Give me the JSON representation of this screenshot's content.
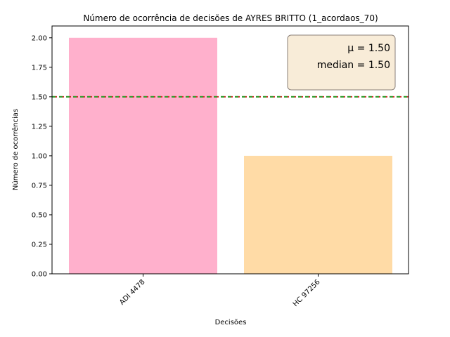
{
  "chart_data": {
    "type": "bar",
    "title": "Número de ocorrência de decisões de AYRES BRITTO (1_acordaos_70)",
    "xlabel": "Decisões",
    "ylabel": "Número de ocorrências",
    "categories": [
      "ADI 4478",
      "HC 97256"
    ],
    "values": [
      2,
      1
    ],
    "colors": [
      "#ffb0cc",
      "#ffdba6"
    ],
    "ylim": [
      0,
      2.1
    ],
    "yticks": [
      "0.00",
      "0.25",
      "0.50",
      "0.75",
      "1.00",
      "1.25",
      "1.50",
      "1.75",
      "2.00"
    ],
    "ytick_values": [
      0,
      0.25,
      0.5,
      0.75,
      1.0,
      1.25,
      1.5,
      1.75,
      2.0
    ],
    "reference_lines": [
      {
        "value": 1.5,
        "color": "#d62728",
        "style": "dashed"
      },
      {
        "value": 1.5,
        "color": "#2ca02c",
        "style": "dashed"
      }
    ],
    "stats": {
      "mean_label": "μ = 1.50",
      "median_label": "median = 1.50"
    },
    "stats_box_colors": {
      "fill": "#f8ecd8",
      "edge": "#8a7f78"
    },
    "grid": false,
    "legend": "none"
  }
}
